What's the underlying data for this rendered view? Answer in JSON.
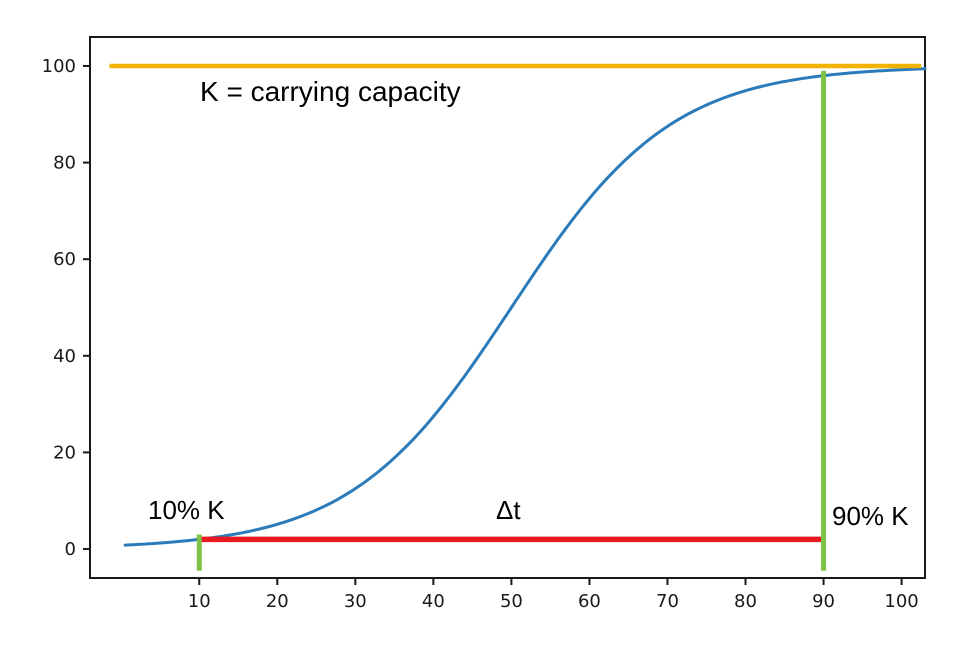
{
  "chart_data": {
    "type": "line",
    "title": "",
    "xlabel": "",
    "ylabel": "",
    "xlim": [
      -4,
      103
    ],
    "ylim": [
      -6,
      106
    ],
    "grid": false,
    "legend": "none",
    "x_ticks": [
      10,
      20,
      30,
      40,
      50,
      60,
      70,
      80,
      90,
      100
    ],
    "y_ticks": [
      0,
      20,
      40,
      60,
      80,
      100
    ],
    "series": [
      {
        "name": "logistic-growth-curve",
        "description": "logistic (sigmoid) population growth curve approaching carrying capacity K=100",
        "color": "#2b7bba",
        "line_width": 3,
        "K": 100,
        "midpoint": 50,
        "rate": 0.0973,
        "x_start": 0.5,
        "x_end": 103,
        "sample_points": {
          "x": [
            0,
            10,
            20,
            30,
            40,
            50,
            60,
            70,
            80,
            90,
            100
          ],
          "y": [
            0.8,
            2,
            5,
            12.5,
            27,
            50,
            73,
            87.5,
            95,
            98,
            99.3
          ]
        }
      }
    ],
    "reference_lines": [
      {
        "name": "carrying-capacity-line",
        "color": "#f2b200",
        "line_width": 4.5,
        "x1": -1.5,
        "y1": 100,
        "x2": 102.5,
        "y2": 100
      },
      {
        "name": "delta-t-line",
        "color": "#e8191f",
        "line_width": 5.5,
        "x1": 10,
        "y1": 2,
        "x2": 90,
        "y2": 2
      },
      {
        "name": "marker-10-percent",
        "color": "#7dc243",
        "line_width": 5,
        "x1": 10,
        "y1": -4.5,
        "x2": 10,
        "y2": 3
      },
      {
        "name": "marker-90-percent",
        "color": "#7dc243",
        "line_width": 5,
        "x1": 90,
        "y1": -4.5,
        "x2": 90,
        "y2": 99
      }
    ],
    "annotations": [
      {
        "text": "K = carrying capacity"
      },
      {
        "text": "10% K"
      },
      {
        "text": "Δt"
      },
      {
        "text": "90% K"
      }
    ],
    "frame_color": "#1a1a1a"
  }
}
